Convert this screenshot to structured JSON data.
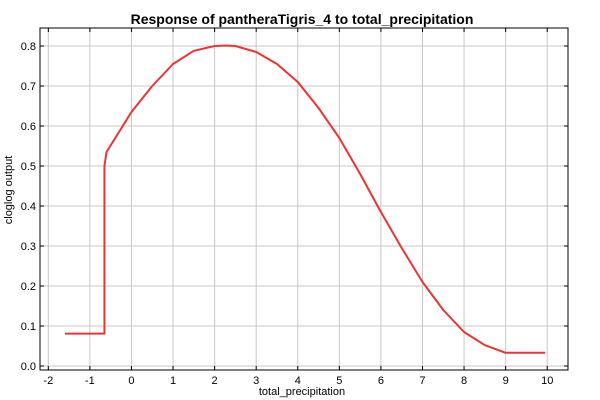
{
  "chart_data": {
    "type": "line",
    "title": "Response of pantheraTigris_4 to total_precipitation",
    "xlabel": "total_precipitation",
    "ylabel": "cloglog output",
    "xlim": [
      -2.2,
      10.5
    ],
    "ylim": [
      -0.01,
      0.845
    ],
    "xticks": [
      -2,
      -1,
      0,
      1,
      2,
      3,
      4,
      5,
      6,
      7,
      8,
      9,
      10
    ],
    "yticks": [
      0.0,
      0.1,
      0.2,
      0.3,
      0.4,
      0.5,
      0.6,
      0.7,
      0.8
    ],
    "xtick_labels": [
      "-2",
      "-1",
      "0",
      "1",
      "2",
      "3",
      "4",
      "5",
      "6",
      "7",
      "8",
      "9",
      "10"
    ],
    "ytick_labels": [
      "0.0",
      "0.1",
      "0.2",
      "0.3",
      "0.4",
      "0.5",
      "0.6",
      "0.7",
      "0.8"
    ],
    "grid": true,
    "series": [
      {
        "color": "#ee3333",
        "x": [
          -1.6,
          -0.65,
          -0.65,
          -0.6,
          -0.3,
          0.0,
          0.5,
          1.0,
          1.5,
          2.0,
          2.3,
          2.5,
          3.0,
          3.5,
          4.0,
          4.5,
          5.0,
          5.5,
          6.0,
          6.5,
          7.0,
          7.5,
          8.0,
          8.5,
          9.0,
          9.5,
          9.95
        ],
        "y": [
          0.081,
          0.081,
          0.5,
          0.535,
          0.585,
          0.635,
          0.7,
          0.755,
          0.788,
          0.8,
          0.801,
          0.8,
          0.785,
          0.755,
          0.71,
          0.645,
          0.57,
          0.48,
          0.385,
          0.295,
          0.21,
          0.14,
          0.085,
          0.052,
          0.033,
          0.033,
          0.033
        ]
      }
    ]
  }
}
